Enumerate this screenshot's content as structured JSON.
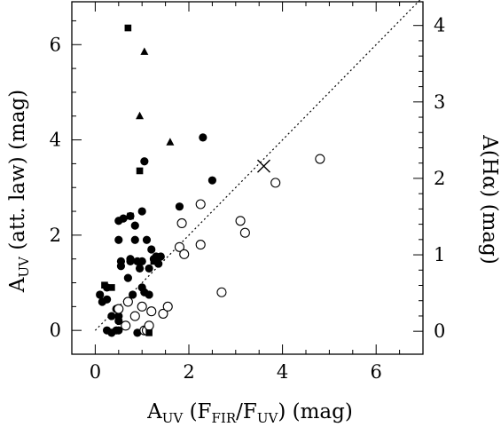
{
  "chart_data": {
    "type": "scatter",
    "xlabel": "A_UV (F_FIR/F_UV) (mag)",
    "ylabel": "A_UV (att. law) (mag)",
    "y2label": "A(Hα) (mag)",
    "xlim": [
      -0.5,
      7.0
    ],
    "ylim": [
      -0.5,
      6.9
    ],
    "y2lim": [
      -0.3,
      4.31
    ],
    "xticks": [
      "0",
      "2",
      "4",
      "6"
    ],
    "yticks": [
      "0",
      "2",
      "4",
      "6"
    ],
    "y2ticks": [
      "0",
      "1",
      "2",
      "3",
      "4"
    ],
    "x_tick_values": [
      0,
      2,
      4,
      6
    ],
    "y_tick_values": [
      0,
      2,
      4,
      6
    ],
    "y2_tick_values": [
      0,
      1,
      2,
      3,
      4
    ],
    "grid": false,
    "reference_line": {
      "style": "dotted",
      "slope": 1,
      "x": [
        0,
        7
      ]
    },
    "series": [
      {
        "marker": "filled-circle",
        "points": [
          [
            0.1,
            0.75
          ],
          [
            0.15,
            0.6
          ],
          [
            0.25,
            0.9
          ],
          [
            0.25,
            0.65
          ],
          [
            0.25,
            0.0
          ],
          [
            0.35,
            -0.05
          ],
          [
            0.35,
            0.3
          ],
          [
            0.45,
            0.0
          ],
          [
            0.45,
            0.45
          ],
          [
            0.5,
            0.3
          ],
          [
            0.5,
            0.2
          ],
          [
            0.5,
            0.0
          ],
          [
            0.5,
            2.3
          ],
          [
            0.5,
            1.9
          ],
          [
            0.55,
            1.45
          ],
          [
            0.55,
            1.35
          ],
          [
            0.6,
            2.35
          ],
          [
            0.7,
            1.1
          ],
          [
            0.75,
            1.5
          ],
          [
            0.75,
            1.45
          ],
          [
            0.75,
            2.4
          ],
          [
            0.8,
            0.75
          ],
          [
            0.85,
            2.2
          ],
          [
            0.85,
            1.9
          ],
          [
            0.9,
            1.45
          ],
          [
            0.9,
            -0.05
          ],
          [
            0.95,
            1.3
          ],
          [
            1.0,
            0.9
          ],
          [
            1.0,
            1.45
          ],
          [
            1.0,
            2.5
          ],
          [
            1.05,
            3.55
          ],
          [
            1.05,
            0.8
          ],
          [
            1.1,
            1.9
          ],
          [
            1.15,
            0.75
          ],
          [
            1.15,
            1.3
          ],
          [
            1.2,
            1.7
          ],
          [
            1.25,
            1.5
          ],
          [
            1.3,
            1.55
          ],
          [
            1.35,
            1.4
          ],
          [
            1.4,
            1.55
          ],
          [
            1.8,
            2.6
          ],
          [
            2.3,
            4.05
          ],
          [
            2.5,
            3.15
          ]
        ]
      },
      {
        "marker": "open-circle",
        "points": [
          [
            0.5,
            0.45
          ],
          [
            0.65,
            0.1
          ],
          [
            0.7,
            0.6
          ],
          [
            0.85,
            0.3
          ],
          [
            1.0,
            0.5
          ],
          [
            1.05,
            0.0
          ],
          [
            1.1,
            0.0
          ],
          [
            1.15,
            0.1
          ],
          [
            1.2,
            0.4
          ],
          [
            1.45,
            0.35
          ],
          [
            1.55,
            0.5
          ],
          [
            1.8,
            1.75
          ],
          [
            1.85,
            2.25
          ],
          [
            1.9,
            1.6
          ],
          [
            2.25,
            2.65
          ],
          [
            2.25,
            1.8
          ],
          [
            2.7,
            0.8
          ],
          [
            3.1,
            2.3
          ],
          [
            3.2,
            2.05
          ],
          [
            3.85,
            3.1
          ],
          [
            4.8,
            3.6
          ]
        ]
      },
      {
        "marker": "filled-square",
        "points": [
          [
            0.2,
            0.95
          ],
          [
            0.35,
            0.9
          ],
          [
            0.7,
            6.35
          ],
          [
            0.75,
            2.4
          ],
          [
            0.95,
            3.35
          ],
          [
            1.15,
            -0.05
          ],
          [
            1.25,
            1.45
          ],
          [
            1.35,
            1.55
          ]
        ]
      },
      {
        "marker": "filled-triangle",
        "points": [
          [
            1.05,
            5.85
          ],
          [
            0.95,
            4.5
          ],
          [
            1.6,
            3.95
          ]
        ]
      },
      {
        "marker": "cross",
        "points": [
          [
            3.6,
            3.45
          ]
        ]
      }
    ]
  }
}
